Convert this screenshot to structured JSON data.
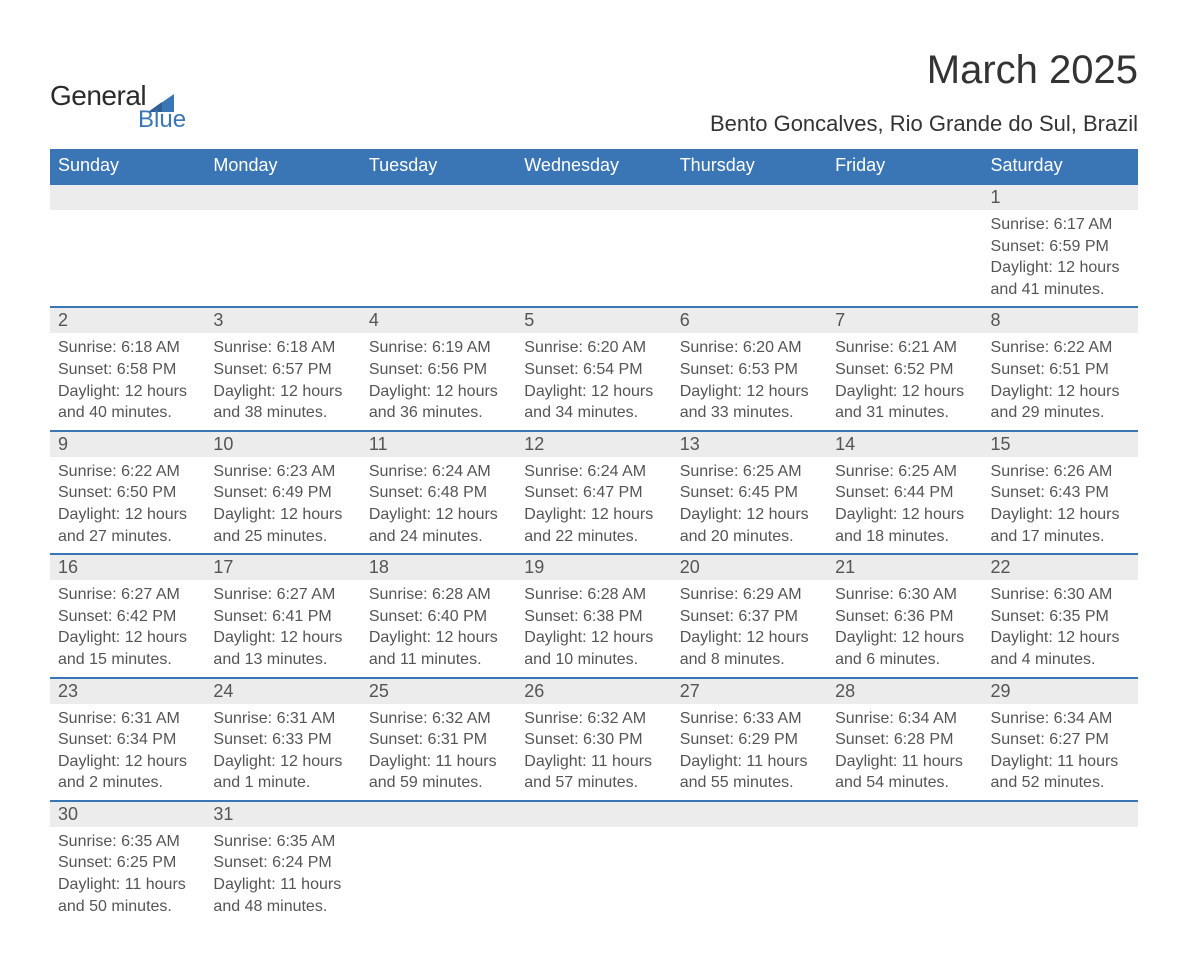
{
  "logo": {
    "text_top": "General",
    "text_bottom": "Blue",
    "accent_color": "#3a76b6"
  },
  "title": "March 2025",
  "subtitle": "Bento Goncalves, Rio Grande do Sul, Brazil",
  "colors": {
    "header_bg": "#3a76b6",
    "header_text": "#ffffff",
    "daynum_bg": "#ececec",
    "row_border": "#3a76b6",
    "body_text": "#555555",
    "page_bg": "#ffffff"
  },
  "typography": {
    "title_fontsize": 40,
    "subtitle_fontsize": 22,
    "header_fontsize": 18,
    "daynum_fontsize": 18,
    "body_fontsize": 16
  },
  "day_headers": [
    "Sunday",
    "Monday",
    "Tuesday",
    "Wednesday",
    "Thursday",
    "Friday",
    "Saturday"
  ],
  "weeks": [
    [
      null,
      null,
      null,
      null,
      null,
      null,
      {
        "n": "1",
        "sunrise": "Sunrise: 6:17 AM",
        "sunset": "Sunset: 6:59 PM",
        "daylight": "Daylight: 12 hours and 41 minutes."
      }
    ],
    [
      {
        "n": "2",
        "sunrise": "Sunrise: 6:18 AM",
        "sunset": "Sunset: 6:58 PM",
        "daylight": "Daylight: 12 hours and 40 minutes."
      },
      {
        "n": "3",
        "sunrise": "Sunrise: 6:18 AM",
        "sunset": "Sunset: 6:57 PM",
        "daylight": "Daylight: 12 hours and 38 minutes."
      },
      {
        "n": "4",
        "sunrise": "Sunrise: 6:19 AM",
        "sunset": "Sunset: 6:56 PM",
        "daylight": "Daylight: 12 hours and 36 minutes."
      },
      {
        "n": "5",
        "sunrise": "Sunrise: 6:20 AM",
        "sunset": "Sunset: 6:54 PM",
        "daylight": "Daylight: 12 hours and 34 minutes."
      },
      {
        "n": "6",
        "sunrise": "Sunrise: 6:20 AM",
        "sunset": "Sunset: 6:53 PM",
        "daylight": "Daylight: 12 hours and 33 minutes."
      },
      {
        "n": "7",
        "sunrise": "Sunrise: 6:21 AM",
        "sunset": "Sunset: 6:52 PM",
        "daylight": "Daylight: 12 hours and 31 minutes."
      },
      {
        "n": "8",
        "sunrise": "Sunrise: 6:22 AM",
        "sunset": "Sunset: 6:51 PM",
        "daylight": "Daylight: 12 hours and 29 minutes."
      }
    ],
    [
      {
        "n": "9",
        "sunrise": "Sunrise: 6:22 AM",
        "sunset": "Sunset: 6:50 PM",
        "daylight": "Daylight: 12 hours and 27 minutes."
      },
      {
        "n": "10",
        "sunrise": "Sunrise: 6:23 AM",
        "sunset": "Sunset: 6:49 PM",
        "daylight": "Daylight: 12 hours and 25 minutes."
      },
      {
        "n": "11",
        "sunrise": "Sunrise: 6:24 AM",
        "sunset": "Sunset: 6:48 PM",
        "daylight": "Daylight: 12 hours and 24 minutes."
      },
      {
        "n": "12",
        "sunrise": "Sunrise: 6:24 AM",
        "sunset": "Sunset: 6:47 PM",
        "daylight": "Daylight: 12 hours and 22 minutes."
      },
      {
        "n": "13",
        "sunrise": "Sunrise: 6:25 AM",
        "sunset": "Sunset: 6:45 PM",
        "daylight": "Daylight: 12 hours and 20 minutes."
      },
      {
        "n": "14",
        "sunrise": "Sunrise: 6:25 AM",
        "sunset": "Sunset: 6:44 PM",
        "daylight": "Daylight: 12 hours and 18 minutes."
      },
      {
        "n": "15",
        "sunrise": "Sunrise: 6:26 AM",
        "sunset": "Sunset: 6:43 PM",
        "daylight": "Daylight: 12 hours and 17 minutes."
      }
    ],
    [
      {
        "n": "16",
        "sunrise": "Sunrise: 6:27 AM",
        "sunset": "Sunset: 6:42 PM",
        "daylight": "Daylight: 12 hours and 15 minutes."
      },
      {
        "n": "17",
        "sunrise": "Sunrise: 6:27 AM",
        "sunset": "Sunset: 6:41 PM",
        "daylight": "Daylight: 12 hours and 13 minutes."
      },
      {
        "n": "18",
        "sunrise": "Sunrise: 6:28 AM",
        "sunset": "Sunset: 6:40 PM",
        "daylight": "Daylight: 12 hours and 11 minutes."
      },
      {
        "n": "19",
        "sunrise": "Sunrise: 6:28 AM",
        "sunset": "Sunset: 6:38 PM",
        "daylight": "Daylight: 12 hours and 10 minutes."
      },
      {
        "n": "20",
        "sunrise": "Sunrise: 6:29 AM",
        "sunset": "Sunset: 6:37 PM",
        "daylight": "Daylight: 12 hours and 8 minutes."
      },
      {
        "n": "21",
        "sunrise": "Sunrise: 6:30 AM",
        "sunset": "Sunset: 6:36 PM",
        "daylight": "Daylight: 12 hours and 6 minutes."
      },
      {
        "n": "22",
        "sunrise": "Sunrise: 6:30 AM",
        "sunset": "Sunset: 6:35 PM",
        "daylight": "Daylight: 12 hours and 4 minutes."
      }
    ],
    [
      {
        "n": "23",
        "sunrise": "Sunrise: 6:31 AM",
        "sunset": "Sunset: 6:34 PM",
        "daylight": "Daylight: 12 hours and 2 minutes."
      },
      {
        "n": "24",
        "sunrise": "Sunrise: 6:31 AM",
        "sunset": "Sunset: 6:33 PM",
        "daylight": "Daylight: 12 hours and 1 minute."
      },
      {
        "n": "25",
        "sunrise": "Sunrise: 6:32 AM",
        "sunset": "Sunset: 6:31 PM",
        "daylight": "Daylight: 11 hours and 59 minutes."
      },
      {
        "n": "26",
        "sunrise": "Sunrise: 6:32 AM",
        "sunset": "Sunset: 6:30 PM",
        "daylight": "Daylight: 11 hours and 57 minutes."
      },
      {
        "n": "27",
        "sunrise": "Sunrise: 6:33 AM",
        "sunset": "Sunset: 6:29 PM",
        "daylight": "Daylight: 11 hours and 55 minutes."
      },
      {
        "n": "28",
        "sunrise": "Sunrise: 6:34 AM",
        "sunset": "Sunset: 6:28 PM",
        "daylight": "Daylight: 11 hours and 54 minutes."
      },
      {
        "n": "29",
        "sunrise": "Sunrise: 6:34 AM",
        "sunset": "Sunset: 6:27 PM",
        "daylight": "Daylight: 11 hours and 52 minutes."
      }
    ],
    [
      {
        "n": "30",
        "sunrise": "Sunrise: 6:35 AM",
        "sunset": "Sunset: 6:25 PM",
        "daylight": "Daylight: 11 hours and 50 minutes."
      },
      {
        "n": "31",
        "sunrise": "Sunrise: 6:35 AM",
        "sunset": "Sunset: 6:24 PM",
        "daylight": "Daylight: 11 hours and 48 minutes."
      },
      null,
      null,
      null,
      null,
      null
    ]
  ]
}
